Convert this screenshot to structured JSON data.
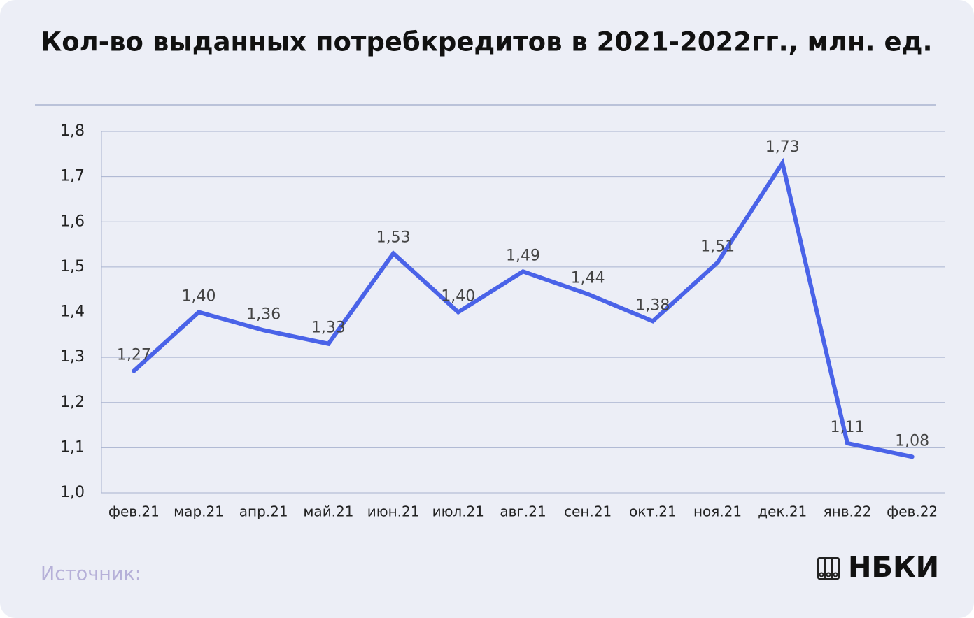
{
  "chart_data": {
    "type": "line",
    "title": "Кол-во выданных потребкредитов в 2021-2022гг., млн. ед.",
    "categories": [
      "фев.21",
      "мар.21",
      "апр.21",
      "май.21",
      "июн.21",
      "июл.21",
      "авг.21",
      "сен.21",
      "окт.21",
      "ноя.21",
      "дек.21",
      "янв.22",
      "фев.22"
    ],
    "values": [
      1.27,
      1.4,
      1.36,
      1.33,
      1.53,
      1.4,
      1.49,
      1.44,
      1.38,
      1.51,
      1.73,
      1.11,
      1.08
    ],
    "value_labels": [
      "1,27",
      "1,40",
      "1,36",
      "1,33",
      "1,53",
      "1,40",
      "1,49",
      "1,44",
      "1,38",
      "1,51",
      "1,73",
      "1,11",
      "1,08"
    ],
    "color": "#4a63e8",
    "ylim": [
      1.0,
      1.8
    ],
    "yticks": [
      {
        "value": 1.0,
        "label": "1,0"
      },
      {
        "value": 1.1,
        "label": "1,1"
      },
      {
        "value": 1.2,
        "label": "1,2"
      },
      {
        "value": 1.3,
        "label": "1,3"
      },
      {
        "value": 1.4,
        "label": "1,4"
      },
      {
        "value": 1.5,
        "label": "1,5"
      },
      {
        "value": 1.6,
        "label": "1,6"
      },
      {
        "value": 1.7,
        "label": "1,7"
      },
      {
        "value": 1.8,
        "label": "1,8"
      }
    ],
    "grid": true,
    "source": "Источник:",
    "logo": "НБКИ"
  }
}
